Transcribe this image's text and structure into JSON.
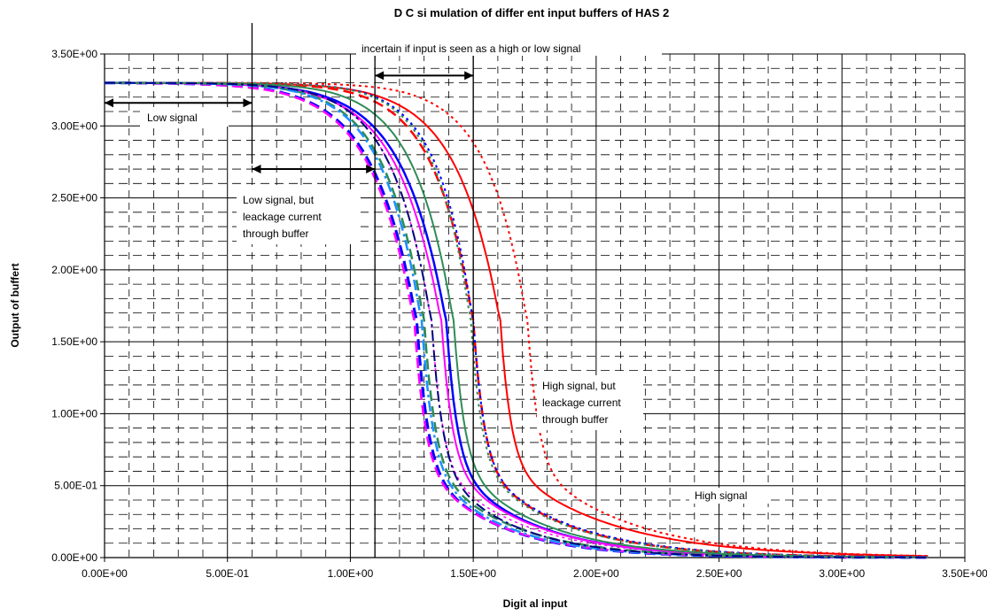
{
  "chart_data": {
    "type": "line",
    "title": "D C si mulation of differ ent input buffers of HAS 2",
    "xlabel": "Digit al input",
    "ylabel": "Output of buffert",
    "xlim": [
      0,
      3.5
    ],
    "ylim": [
      0,
      3.5
    ],
    "x_ticks": [
      "0.00E+00",
      "5.00E-01",
      "1.00E+00",
      "1.50E+00",
      "2.00E+00",
      "2.50E+00",
      "3.00E+00",
      "3.50E+00"
    ],
    "y_ticks": [
      "0.00E+00",
      "5.00E-01",
      "1.00E+00",
      "1.50E+00",
      "2.00E+00",
      "2.50E+00",
      "3.00E+00",
      "3.50E+00"
    ],
    "grid": true,
    "legend": "none",
    "annotations": {
      "low_signal": "Low signal",
      "low_leak_1": "Low signal, but",
      "low_leak_2": "leackage current",
      "low_leak_3": "through buffer",
      "uncertain": "incertain if input is seen as a high or low signal",
      "high_leak_1": "High signal, but",
      "high_leak_2": "leackage current",
      "high_leak_3": "through buffer",
      "high_signal": "High signal"
    },
    "markers": {
      "vlines": [
        0.6,
        1.1,
        1.5
      ],
      "arrows": [
        {
          "x1": 0.0,
          "x2": 0.6,
          "y": 3.16
        },
        {
          "x1": 0.6,
          "x2": 1.1,
          "y": 2.7
        },
        {
          "x1": 1.1,
          "x2": 1.5,
          "y": 3.35
        }
      ]
    },
    "series": [
      {
        "color": "#ff0000",
        "dash": "solid",
        "vth": 1.61,
        "lead": 0.55,
        "tail": 0.42,
        "width": 2
      },
      {
        "color": "#ff0000",
        "dash": "dot",
        "vth": 1.72,
        "lead": 0.5,
        "tail": 0.4,
        "width": 2
      },
      {
        "color": "#ff0000",
        "dash": "dash",
        "vth": 1.5,
        "lead": 0.5,
        "tail": 0.35,
        "width": 2.5
      },
      {
        "color": "#0000ff",
        "dash": "solid",
        "vth": 1.39,
        "lead": 0.55,
        "tail": 0.33,
        "width": 2.5
      },
      {
        "color": "#0000ff",
        "dash": "dash",
        "vth": 1.27,
        "lead": 0.55,
        "tail": 0.3,
        "width": 3
      },
      {
        "color": "#0000ff",
        "dash": "dot",
        "vth": 1.5,
        "lead": 0.45,
        "tail": 0.36,
        "width": 2
      },
      {
        "color": "#ff00ff",
        "dash": "solid",
        "vth": 1.37,
        "lead": 0.55,
        "tail": 0.34,
        "width": 2
      },
      {
        "color": "#ff00ff",
        "dash": "dash",
        "vth": 1.26,
        "lead": 0.55,
        "tail": 0.31,
        "width": 2.5
      },
      {
        "color": "#ff00ff",
        "dash": "dot",
        "vth": 1.33,
        "lead": 0.5,
        "tail": 0.34,
        "width": 1.5
      },
      {
        "color": "#2e8b57",
        "dash": "solid",
        "vth": 1.42,
        "lead": 0.5,
        "tail": 0.34,
        "width": 2
      },
      {
        "color": "#2e8b57",
        "dash": "dash",
        "vth": 1.3,
        "lead": 0.5,
        "tail": 0.32,
        "width": 2.5
      },
      {
        "color": "#2e8b57",
        "dash": "dot",
        "vth": 1.49,
        "lead": 0.45,
        "tail": 0.35,
        "width": 2
      },
      {
        "color": "#1e90ff",
        "dash": "dashdot",
        "vth": 1.29,
        "lead": 0.5,
        "tail": 0.3,
        "width": 2.5
      },
      {
        "color": "#000080",
        "dash": "dashdot",
        "vth": 1.33,
        "lead": 0.5,
        "tail": 0.3,
        "width": 2
      }
    ]
  }
}
